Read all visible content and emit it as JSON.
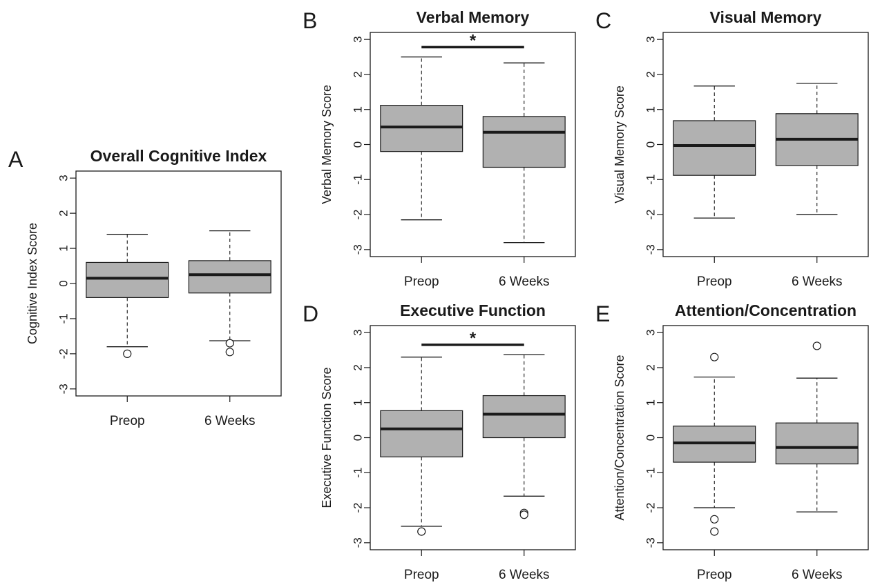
{
  "chart_data": [
    {
      "type": "box",
      "panel": "A",
      "title": "Overall Cognitive Index",
      "ylabel": "Cognitive Index Score",
      "ylim": [
        -3.2,
        3.2
      ],
      "yticks": [
        -3,
        -2,
        -1,
        0,
        1,
        2,
        3
      ],
      "categories": [
        "Preop",
        "6 Weeks"
      ],
      "boxes": [
        {
          "q1": -0.4,
          "median": 0.15,
          "q3": 0.6,
          "whisker_low": -1.8,
          "whisker_high": 1.4,
          "outliers": [
            -2.0
          ]
        },
        {
          "q1": -0.27,
          "median": 0.25,
          "q3": 0.65,
          "whisker_low": -1.63,
          "whisker_high": 1.5,
          "outliers": [
            -1.7,
            -1.95
          ]
        }
      ],
      "significance": null
    },
    {
      "type": "box",
      "panel": "B",
      "title": "Verbal Memory",
      "ylabel": "Verbal Memory Score",
      "ylim": [
        -3.2,
        3.2
      ],
      "yticks": [
        -3,
        -2,
        -1,
        0,
        1,
        2,
        3
      ],
      "categories": [
        "Preop",
        "6 Weeks"
      ],
      "boxes": [
        {
          "q1": -0.2,
          "median": 0.5,
          "q3": 1.12,
          "whisker_low": -2.15,
          "whisker_high": 2.5,
          "outliers": []
        },
        {
          "q1": -0.65,
          "median": 0.35,
          "q3": 0.8,
          "whisker_low": -2.8,
          "whisker_high": 2.33,
          "outliers": []
        }
      ],
      "significance": {
        "label": "*",
        "y": 2.78
      }
    },
    {
      "type": "box",
      "panel": "C",
      "title": "Visual Memory",
      "ylabel": "Visual Memory Score",
      "ylim": [
        -3.2,
        3.2
      ],
      "yticks": [
        -3,
        -2,
        -1,
        0,
        1,
        2,
        3
      ],
      "categories": [
        "Preop",
        "6 Weeks"
      ],
      "boxes": [
        {
          "q1": -0.88,
          "median": -0.03,
          "q3": 0.68,
          "whisker_low": -2.1,
          "whisker_high": 1.67,
          "outliers": []
        },
        {
          "q1": -0.6,
          "median": 0.15,
          "q3": 0.88,
          "whisker_low": -2.0,
          "whisker_high": 1.75,
          "outliers": []
        }
      ],
      "significance": null
    },
    {
      "type": "box",
      "panel": "D",
      "title": "Executive Function",
      "ylabel": "Executive Function Score",
      "ylim": [
        -3.2,
        3.2
      ],
      "yticks": [
        -3,
        -2,
        -1,
        0,
        1,
        2,
        3
      ],
      "categories": [
        "Preop",
        "6 Weeks"
      ],
      "boxes": [
        {
          "q1": -0.55,
          "median": 0.25,
          "q3": 0.77,
          "whisker_low": -2.53,
          "whisker_high": 2.3,
          "outliers": [
            -2.68
          ]
        },
        {
          "q1": 0.0,
          "median": 0.67,
          "q3": 1.2,
          "whisker_low": -1.67,
          "whisker_high": 2.37,
          "outliers": [
            -2.15,
            -2.2
          ]
        }
      ],
      "significance": {
        "label": "*",
        "y": 2.65
      }
    },
    {
      "type": "box",
      "panel": "E",
      "title": "Attention/Concentration",
      "ylabel": "Attention/Concentration Score",
      "ylim": [
        -3.2,
        3.2
      ],
      "yticks": [
        -3,
        -2,
        -1,
        0,
        1,
        2,
        3
      ],
      "categories": [
        "Preop",
        "6 Weeks"
      ],
      "boxes": [
        {
          "q1": -0.7,
          "median": -0.15,
          "q3": 0.33,
          "whisker_low": -2.0,
          "whisker_high": 1.73,
          "outliers": [
            2.3,
            -2.33,
            -2.68
          ]
        },
        {
          "q1": -0.75,
          "median": -0.28,
          "q3": 0.42,
          "whisker_low": -2.12,
          "whisker_high": 1.7,
          "outliers": [
            2.62
          ]
        }
      ],
      "significance": null
    }
  ],
  "colors": {
    "box_fill": "#b1b1b1",
    "line": "#1a1a1a"
  }
}
